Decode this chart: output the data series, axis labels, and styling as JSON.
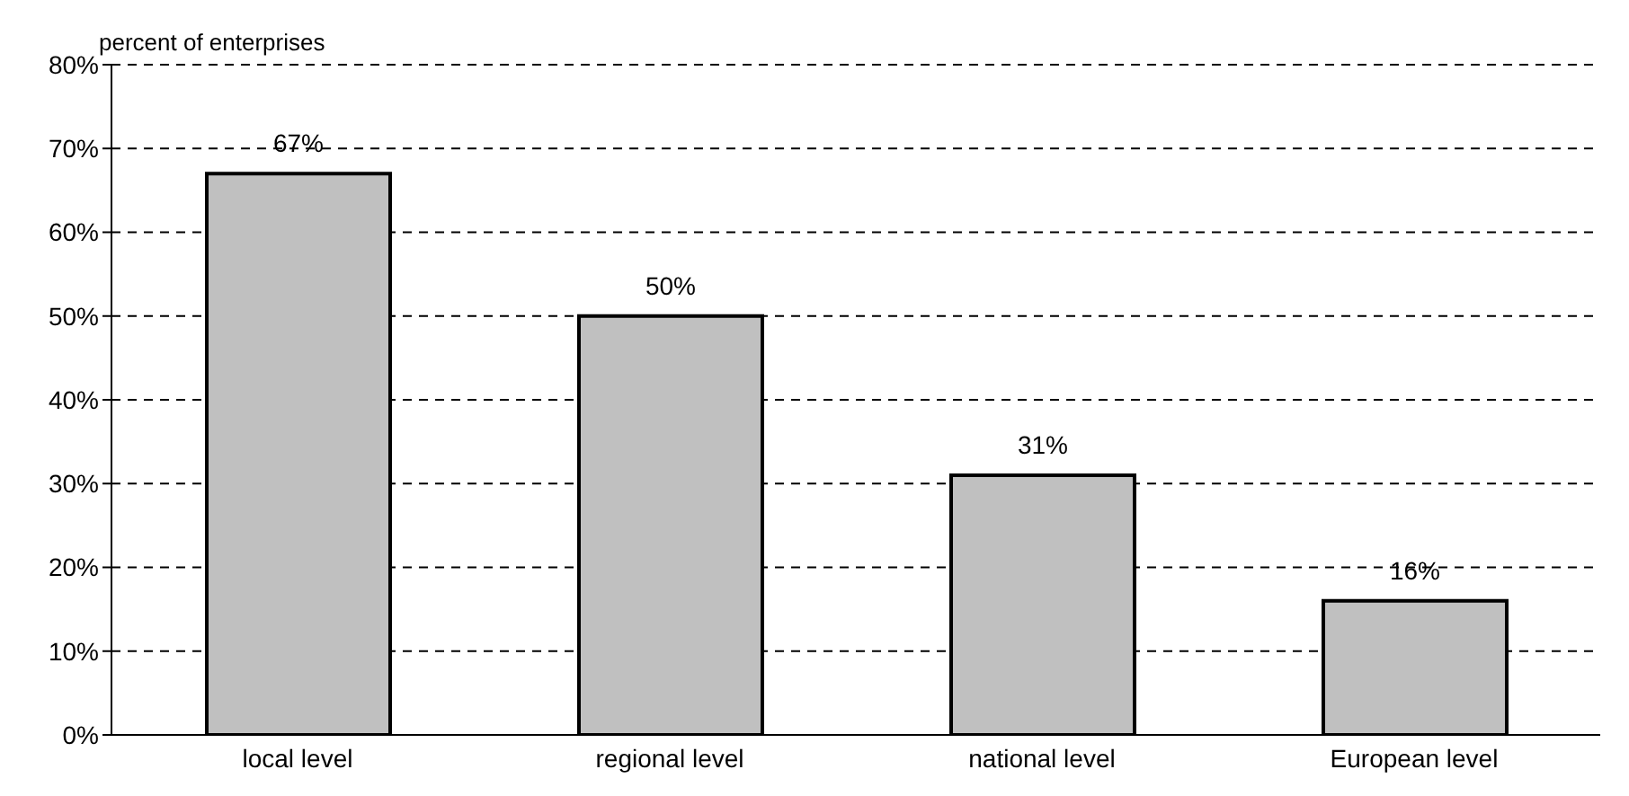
{
  "chart_data": {
    "type": "bar",
    "ylabel": "percent of enterprises",
    "categories": [
      "local level",
      "regional level",
      "national level",
      "European level"
    ],
    "values": [
      67,
      50,
      31,
      16
    ],
    "color": "#c0c0c0",
    "value_labels": [
      "67%",
      "50%",
      "31%",
      "16%"
    ],
    "ylim": [
      0,
      80
    ],
    "yticks": [
      {
        "value": 0,
        "label": "0%"
      },
      {
        "value": 10,
        "label": "10%"
      },
      {
        "value": 20,
        "label": "20%"
      },
      {
        "value": 30,
        "label": "30%"
      },
      {
        "value": 40,
        "label": "40%"
      },
      {
        "value": 50,
        "label": "50%"
      },
      {
        "value": 60,
        "label": "60%"
      },
      {
        "value": 70,
        "label": "70%"
      },
      {
        "value": 80,
        "label": "80%"
      }
    ],
    "grid": "y"
  }
}
